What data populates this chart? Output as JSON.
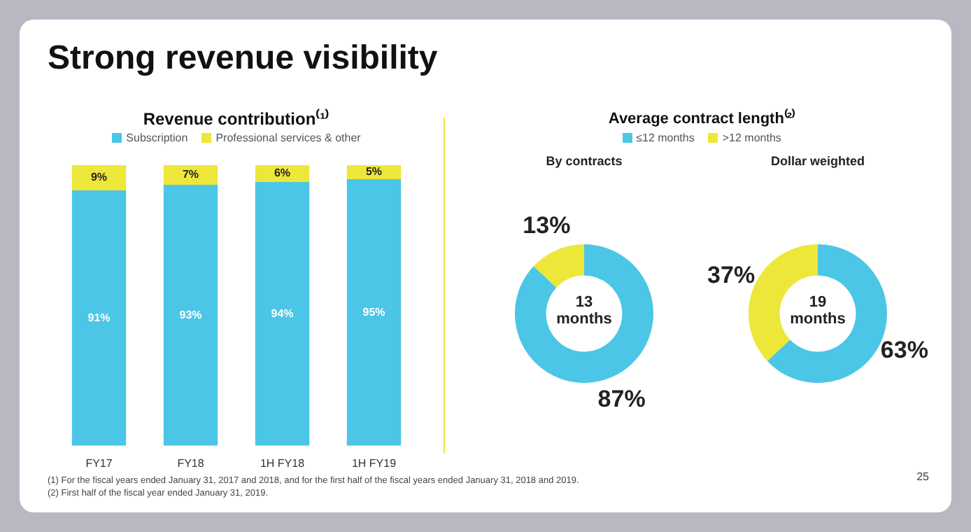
{
  "chart_data": [
    {
      "type": "other",
      "title": "Strong revenue visibility",
      "annotations": [
        "(1) For the fiscal years ended January 31, 2017 and 2018, and for the first half of the fiscal years ended January 31, 2018 and 2019.",
        "(2) First half of the fiscal year ended January 31, 2019.",
        "25"
      ]
    },
    {
      "type": "bar",
      "title": "Revenue contribution⁽¹⁾",
      "categories": [
        "FY17",
        "FY18",
        "1H FY18",
        "1H FY19"
      ],
      "stacked": true,
      "legend": "top",
      "tick_labels": "x",
      "grid": false,
      "series": [
        {
          "name": "Subscription",
          "color": "#4bc6e6",
          "values": [
            91,
            93,
            94,
            95
          ],
          "value_labels": [
            "91%",
            "93%",
            "94%",
            "95%"
          ]
        },
        {
          "name": "Professional services & other",
          "color": "#ede73a",
          "values": [
            9,
            7,
            6,
            5
          ],
          "value_labels": [
            "9%",
            "7%",
            "6%",
            "5%"
          ]
        }
      ]
    },
    {
      "type": "donut",
      "title": "Average contract length⁽²⁾",
      "categories": [
        "≤12 months",
        ">12 months"
      ],
      "colors": [
        "#4bc6e6",
        "#ede73a"
      ],
      "legend": "top",
      "annotations": [
        "13 months",
        "19 months"
      ],
      "series": [
        {
          "name": "By contracts",
          "values": [
            87,
            13
          ],
          "value_labels": [
            "87%",
            "13%"
          ]
        },
        {
          "name": "Dollar weighted",
          "values": [
            63,
            37
          ],
          "value_labels": [
            "63%",
            "37%"
          ]
        }
      ]
    }
  ]
}
